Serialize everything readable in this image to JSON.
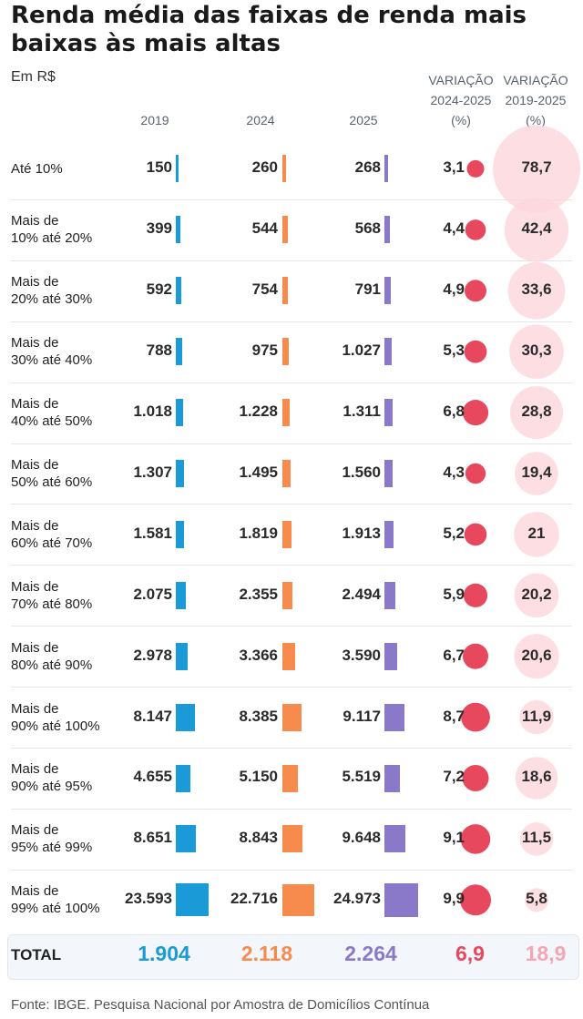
{
  "chart_data": {
    "type": "table",
    "title": "Renda média das faixas de renda mais baixas às mais altas",
    "subtitle": "Em R$",
    "columns": [
      "2019",
      "2024",
      "2025"
    ],
    "var_headers": [
      [
        "VARIAÇÃO",
        "2024-2025",
        "(%)"
      ],
      [
        "VARIAÇÃO",
        "2019-2025",
        "(%)"
      ]
    ],
    "rows": [
      {
        "label": [
          "Até 10%"
        ],
        "v2019": 150,
        "v2024": 260,
        "v2025": 268,
        "v2019s": "150",
        "v2024s": "260",
        "v2025s": "268",
        "var2425": 3.1,
        "var2425s": "3,1",
        "var1925": 78.7,
        "var1925s": "78,7"
      },
      {
        "label": [
          "Mais de",
          "10% até 20%"
        ],
        "v2019": 399,
        "v2024": 544,
        "v2025": 568,
        "v2019s": "399",
        "v2024s": "544",
        "v2025s": "568",
        "var2425": 4.4,
        "var2425s": "4,4",
        "var1925": 42.4,
        "var1925s": "42,4"
      },
      {
        "label": [
          "Mais de",
          "20% até 30%"
        ],
        "v2019": 592,
        "v2024": 754,
        "v2025": 791,
        "v2019s": "592",
        "v2024s": "754",
        "v2025s": "791",
        "var2425": 4.9,
        "var2425s": "4,9",
        "var1925": 33.6,
        "var1925s": "33,6"
      },
      {
        "label": [
          "Mais de",
          "30% até 40%"
        ],
        "v2019": 788,
        "v2024": 975,
        "v2025": 1027,
        "v2019s": "788",
        "v2024s": "975",
        "v2025s": "1.027",
        "var2425": 5.3,
        "var2425s": "5,3",
        "var1925": 30.3,
        "var1925s": "30,3"
      },
      {
        "label": [
          "Mais de",
          "40% até 50%"
        ],
        "v2019": 1018,
        "v2024": 1228,
        "v2025": 1311,
        "v2019s": "1.018",
        "v2024s": "1.228",
        "v2025s": "1.311",
        "var2425": 6.8,
        "var2425s": "6,8",
        "var1925": 28.8,
        "var1925s": "28,8"
      },
      {
        "label": [
          "Mais de",
          "50% até 60%"
        ],
        "v2019": 1307,
        "v2024": 1495,
        "v2025": 1560,
        "v2019s": "1.307",
        "v2024s": "1.495",
        "v2025s": "1.560",
        "var2425": 4.3,
        "var2425s": "4,3",
        "var1925": 19.4,
        "var1925s": "19,4"
      },
      {
        "label": [
          "Mais de",
          "60% até 70%"
        ],
        "v2019": 1581,
        "v2024": 1819,
        "v2025": 1913,
        "v2019s": "1.581",
        "v2024s": "1.819",
        "v2025s": "1.913",
        "var2425": 5.2,
        "var2425s": "5,2",
        "var1925": 21,
        "var1925s": "21"
      },
      {
        "label": [
          "Mais de",
          "70% até 80%"
        ],
        "v2019": 2075,
        "v2024": 2355,
        "v2025": 2494,
        "v2019s": "2.075",
        "v2024s": "2.355",
        "v2025s": "2.494",
        "var2425": 5.9,
        "var2425s": "5,9",
        "var1925": 20.2,
        "var1925s": "20,2"
      },
      {
        "label": [
          "Mais de",
          "80% até 90%"
        ],
        "v2019": 2978,
        "v2024": 3366,
        "v2025": 3590,
        "v2019s": "2.978",
        "v2024s": "3.366",
        "v2025s": "3.590",
        "var2425": 6.7,
        "var2425s": "6,7",
        "var1925": 20.6,
        "var1925s": "20,6"
      },
      {
        "label": [
          "Mais de",
          "90% até 100%"
        ],
        "v2019": 8147,
        "v2024": 8385,
        "v2025": 9117,
        "v2019s": "8.147",
        "v2024s": "8.385",
        "v2025s": "9.117",
        "var2425": 8.7,
        "var2425s": "8,7",
        "var1925": 11.9,
        "var1925s": "11,9"
      },
      {
        "label": [
          "Mais de",
          "90% até 95%"
        ],
        "v2019": 4655,
        "v2024": 5150,
        "v2025": 5519,
        "v2019s": "4.655",
        "v2024s": "5.150",
        "v2025s": "5.519",
        "var2425": 7.2,
        "var2425s": "7,2",
        "var1925": 18.6,
        "var1925s": "18,6"
      },
      {
        "label": [
          "Mais de",
          "95% até 99%"
        ],
        "v2019": 8651,
        "v2024": 8843,
        "v2025": 9648,
        "v2019s": "8.651",
        "v2024s": "8.843",
        "v2025s": "9.648",
        "var2425": 9.1,
        "var2425s": "9,1",
        "var1925": 11.5,
        "var1925s": "11,5"
      },
      {
        "label": [
          "Mais de",
          "99% até 100%"
        ],
        "v2019": 23593,
        "v2024": 22716,
        "v2025": 24973,
        "v2019s": "23.593",
        "v2024s": "22.716",
        "v2025s": "24.973",
        "var2425": 9.9,
        "var2425s": "9,9",
        "var1925": 5.8,
        "var1925s": "5,8"
      }
    ],
    "total": {
      "label": "TOTAL",
      "v2019s": "1.904",
      "v2024s": "2.118",
      "v2025s": "2.264",
      "var2425s": "6,9",
      "var1925s": "18,9"
    },
    "colors": {
      "c2019": "#1a9ad6",
      "c2024": "#f78b4d",
      "c2025": "#8a79c9",
      "var2425": "#e8485e",
      "var1925_fill": "#fcd6dc",
      "var1925_text": "#f4a6b4"
    },
    "source": "Fonte: IBGE. Pesquisa Nacional por Amostra de Domicílios Contínua"
  }
}
